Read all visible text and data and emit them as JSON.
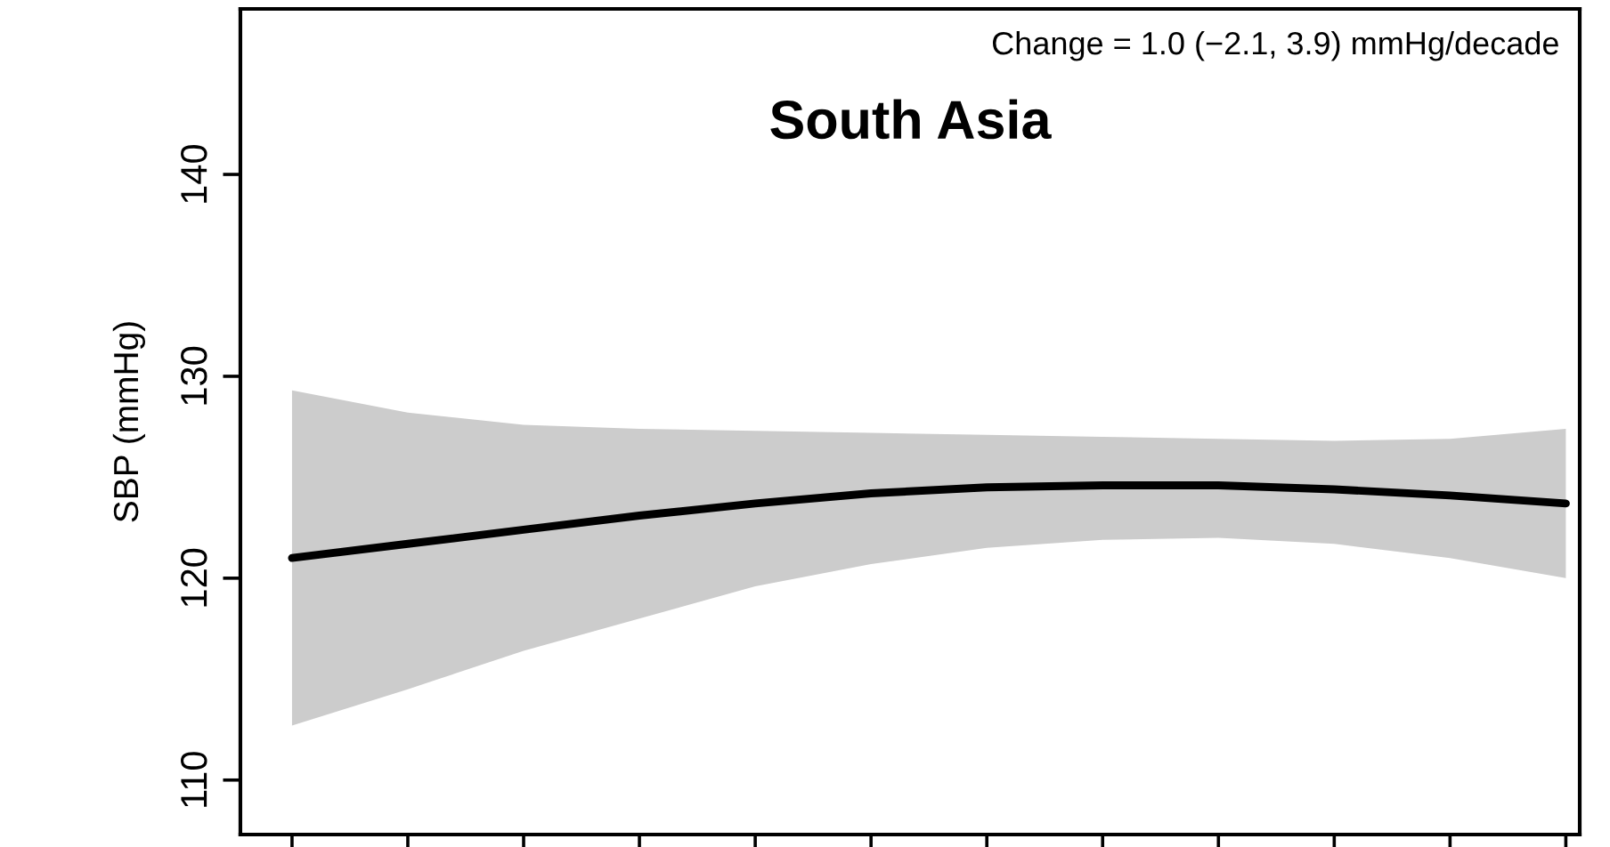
{
  "chart_data": {
    "type": "line",
    "title": "South Asia",
    "ylabel": "SBP (mmHg)",
    "annotations": [
      "Change = 1.0 (−2.1, 3.9) mmHg/decade"
    ],
    "categories": [
      null,
      null,
      null,
      null,
      null,
      null,
      null,
      null,
      null,
      null,
      null,
      null
    ],
    "series": [
      {
        "color": "#000000",
        "values": [
          121.0,
          121.7,
          122.4,
          123.1,
          123.7,
          124.2,
          124.5,
          124.6,
          124.6,
          124.4,
          124.1,
          123.7
        ],
        "upper": [
          129.3,
          128.2,
          127.6,
          127.4,
          127.3,
          127.2,
          127.1,
          127.0,
          126.9,
          126.8,
          126.9,
          127.4
        ],
        "lower": [
          112.7,
          114.5,
          116.4,
          118.0,
          119.6,
          120.7,
          121.5,
          121.9,
          122.0,
          121.7,
          121.0,
          120.0
        ]
      }
    ],
    "ylim": [
      107.3,
      148.2
    ],
    "yticks": [
      110,
      120,
      130,
      140
    ],
    "tick_labels": "y",
    "grid": false,
    "legend": false,
    "marker": "none",
    "line_style": "solid"
  }
}
